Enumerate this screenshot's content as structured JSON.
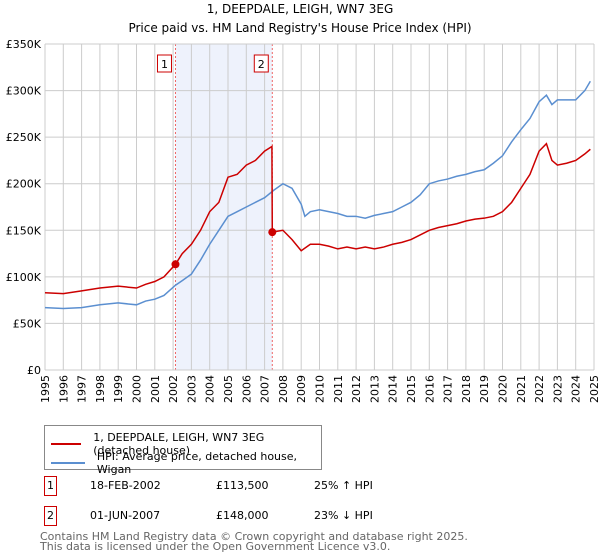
{
  "chart_data": {
    "type": "line",
    "title": "1, DEEPDALE, LEIGH, WN7 3EG",
    "subtitle": "Price paid vs. HM Land Registry's House Price Index (HPI)",
    "xlim": [
      1995,
      2025
    ],
    "ylim": [
      0,
      350000
    ],
    "x_ticks": [
      "1995",
      "1996",
      "1997",
      "1998",
      "1999",
      "2000",
      "2001",
      "2002",
      "2003",
      "2004",
      "2005",
      "2006",
      "2007",
      "2008",
      "2009",
      "2010",
      "2011",
      "2012",
      "2013",
      "2014",
      "2015",
      "2016",
      "2017",
      "2018",
      "2019",
      "2020",
      "2021",
      "2022",
      "2023",
      "2024",
      "2025"
    ],
    "y_ticks": [
      {
        "v": 0,
        "label": "£0"
      },
      {
        "v": 50000,
        "label": "£50K"
      },
      {
        "v": 100000,
        "label": "£100K"
      },
      {
        "v": 150000,
        "label": "£150K"
      },
      {
        "v": 200000,
        "label": "£200K"
      },
      {
        "v": 250000,
        "label": "£250K"
      },
      {
        "v": 300000,
        "label": "£300K"
      },
      {
        "v": 350000,
        "label": "£350K"
      }
    ],
    "grid": true,
    "shaded_range": [
      2002.13,
      2007.42
    ],
    "series": [
      {
        "name": "1, DEEPDALE, LEIGH, WN7 3EG (detached house)",
        "color": "#cc0000",
        "x": [
          1995,
          1996,
          1997,
          1998,
          1999,
          2000,
          2000.5,
          2001,
          2001.5,
          2002.13,
          2002.5,
          2003,
          2003.5,
          2004,
          2004.5,
          2005,
          2005.5,
          2006,
          2006.5,
          2007,
          2007.4,
          2007.42,
          2008,
          2008.5,
          2009,
          2009.5,
          2010,
          2010.5,
          2011,
          2011.5,
          2012,
          2012.5,
          2013,
          2013.5,
          2014,
          2014.5,
          2015,
          2015.5,
          2016,
          2016.5,
          2017,
          2017.5,
          2018,
          2018.5,
          2019,
          2019.5,
          2020,
          2020.5,
          2021,
          2021.5,
          2022,
          2022.4,
          2022.7,
          2023,
          2023.5,
          2024,
          2024.5,
          2024.8
        ],
        "y": [
          83000,
          82000,
          85000,
          88000,
          90000,
          88000,
          92000,
          95000,
          100000,
          113500,
          125000,
          135000,
          150000,
          170000,
          180000,
          207000,
          210000,
          220000,
          225000,
          235000,
          240000,
          148000,
          150000,
          140000,
          128000,
          135000,
          135000,
          133000,
          130000,
          132000,
          130000,
          132000,
          130000,
          132000,
          135000,
          137000,
          140000,
          145000,
          150000,
          153000,
          155000,
          157000,
          160000,
          162000,
          163000,
          165000,
          170000,
          180000,
          195000,
          210000,
          235000,
          243000,
          225000,
          220000,
          222000,
          225000,
          232000,
          237000
        ]
      },
      {
        "name": "HPI: Average price, detached house, Wigan",
        "color": "#5b8fd0",
        "x": [
          1995,
          1996,
          1997,
          1998,
          1999,
          2000,
          2000.5,
          2001,
          2001.5,
          2002.13,
          2002.5,
          2003,
          2003.5,
          2004,
          2004.5,
          2005,
          2005.5,
          2006,
          2006.5,
          2007,
          2007.5,
          2008,
          2008.5,
          2009,
          2009.2,
          2009.5,
          2010,
          2010.5,
          2011,
          2011.5,
          2012,
          2012.5,
          2013,
          2013.5,
          2014,
          2014.5,
          2015,
          2015.5,
          2016,
          2016.5,
          2017,
          2017.5,
          2018,
          2018.5,
          2019,
          2019.5,
          2020,
          2020.5,
          2021,
          2021.5,
          2022,
          2022.4,
          2022.7,
          2023,
          2023.5,
          2024,
          2024.5,
          2024.8
        ],
        "y": [
          67000,
          66000,
          67000,
          70000,
          72000,
          70000,
          74000,
          76000,
          80000,
          91000,
          96000,
          103000,
          118000,
          135000,
          150000,
          165000,
          170000,
          175000,
          180000,
          185000,
          193000,
          200000,
          195000,
          178000,
          165000,
          170000,
          172000,
          170000,
          168000,
          165000,
          165000,
          163000,
          166000,
          168000,
          170000,
          175000,
          180000,
          188000,
          200000,
          203000,
          205000,
          208000,
          210000,
          213000,
          215000,
          222000,
          230000,
          245000,
          258000,
          270000,
          288000,
          295000,
          285000,
          290000,
          290000,
          290000,
          300000,
          310000
        ]
      }
    ],
    "markers": [
      {
        "id": "1",
        "x": 2002.13,
        "y": 113500
      },
      {
        "id": "2",
        "x": 2007.42,
        "y": 148000
      }
    ]
  },
  "legend": {
    "items": [
      "1, DEEPDALE, LEIGH, WN7 3EG (detached house)",
      "HPI: Average price, detached house, Wigan"
    ]
  },
  "transactions": [
    {
      "id": "1",
      "date": "18-FEB-2002",
      "price": "£113,500",
      "hpi": "25% ↑ HPI"
    },
    {
      "id": "2",
      "date": "01-JUN-2007",
      "price": "£148,000",
      "hpi": "23% ↓ HPI"
    }
  ],
  "footer": {
    "line1": "Contains HM Land Registry data © Crown copyright and database right 2025.",
    "line2": "This data is licensed under the Open Government Licence v3.0."
  }
}
